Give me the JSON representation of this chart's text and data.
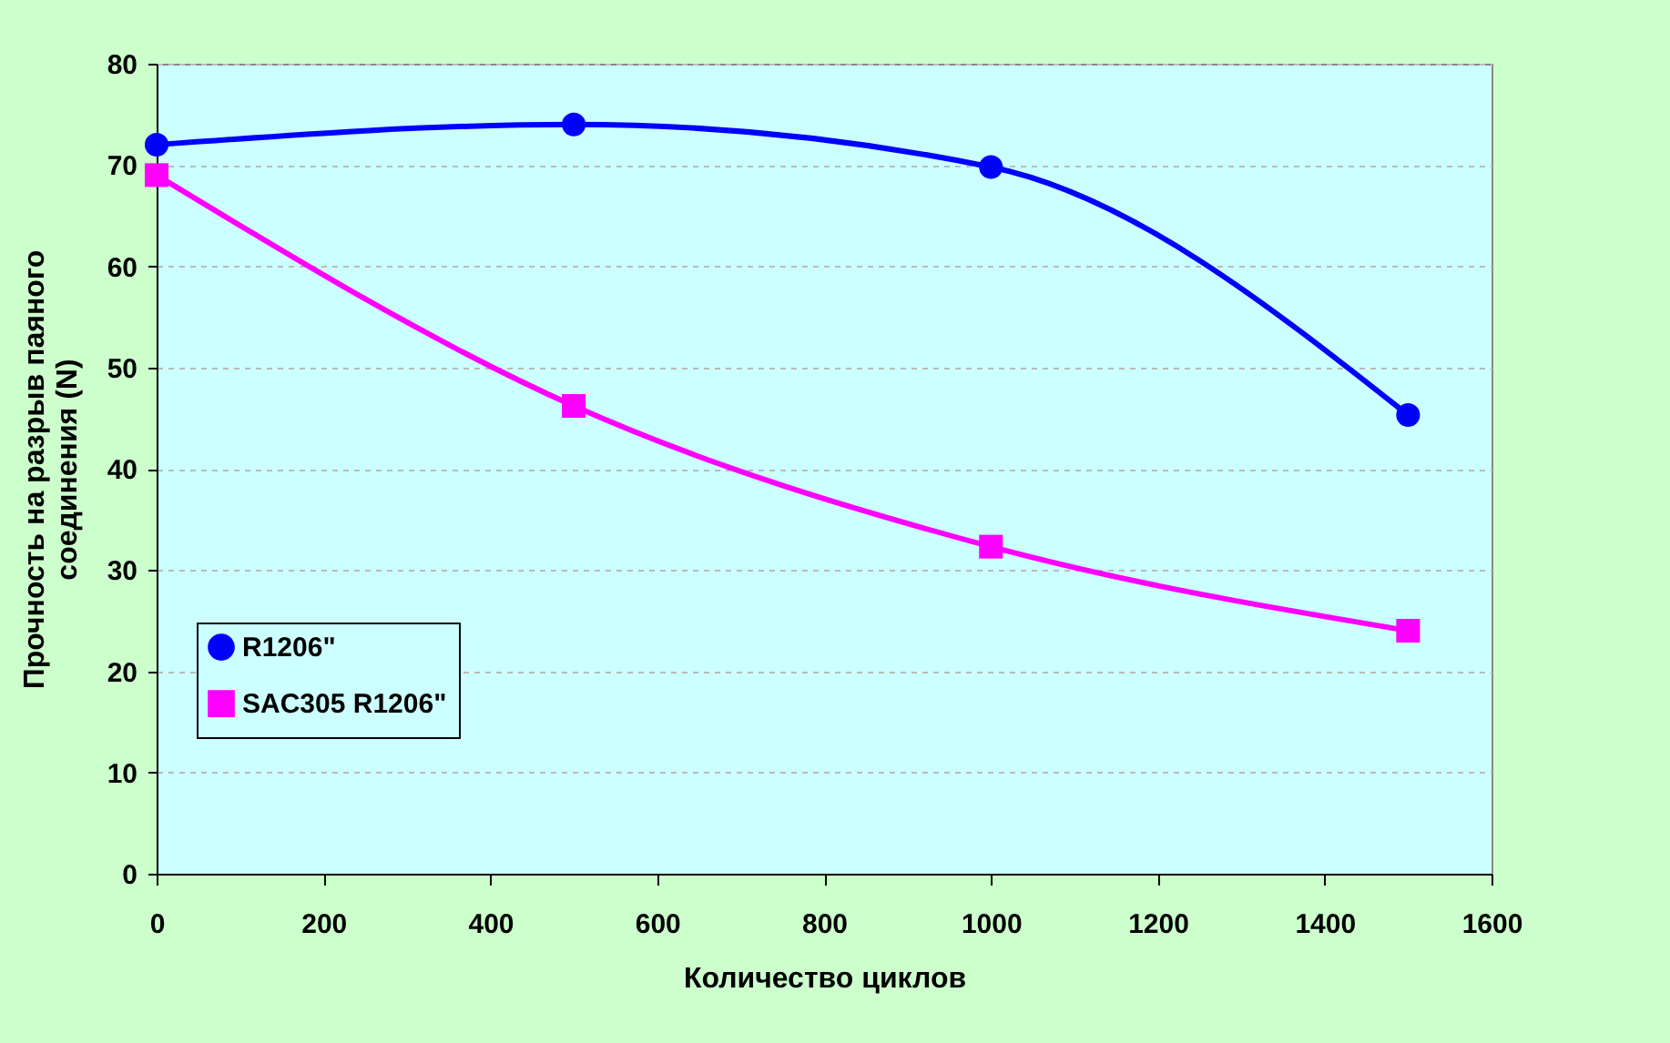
{
  "chart_data": {
    "type": "line",
    "xlabel": "Количество циклов",
    "ylabel": "Прочность на разрыв паяного соединения (N)",
    "x": [
      0,
      500,
      1000,
      1500
    ],
    "series": [
      {
        "name": "R1206\"",
        "color": "#0000ff",
        "marker": "circle",
        "values": [
          72,
          74,
          69.8,
          45.3
        ]
      },
      {
        "name": "SAC305 R1206\"",
        "color": "#ff00ff",
        "marker": "square",
        "values": [
          69,
          46.2,
          32.3,
          24
        ]
      }
    ],
    "xlim": [
      0,
      1600
    ],
    "xticks": [
      0,
      200,
      400,
      600,
      800,
      1000,
      1200,
      1400,
      1600
    ],
    "ylim": [
      0,
      80
    ],
    "yticks": [
      0,
      10,
      20,
      30,
      40,
      50,
      60,
      70,
      80
    ],
    "grid": "y",
    "legend": "left",
    "line_style": "solid"
  }
}
